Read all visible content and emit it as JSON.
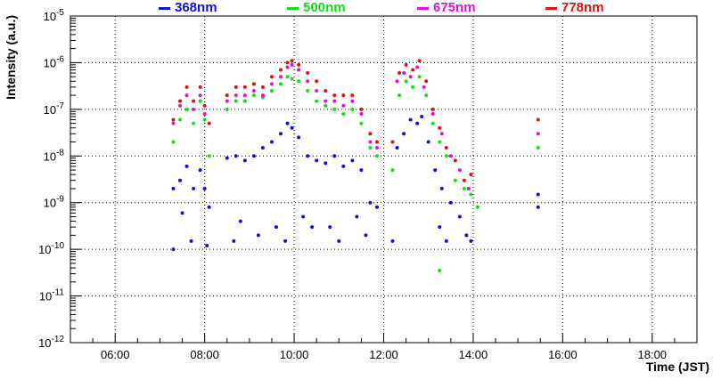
{
  "chart_data": {
    "type": "scatter",
    "xlabel": "Time (JST)",
    "ylabel": "Intensity (a.u.)",
    "x_unit": "hours (JST)",
    "xlim": [
      5.0,
      19.0
    ],
    "ylim": [
      1e-12,
      1e-05
    ],
    "yscale": "log",
    "grid": true,
    "legend_position": "top",
    "x_ticks": [
      {
        "value": 6,
        "label": "06:00"
      },
      {
        "value": 8,
        "label": "08:00"
      },
      {
        "value": 10,
        "label": "10:00"
      },
      {
        "value": 12,
        "label": "12:00"
      },
      {
        "value": 14,
        "label": "14:00"
      },
      {
        "value": 16,
        "label": "16:00"
      },
      {
        "value": 18,
        "label": "18:00"
      }
    ],
    "y_ticks": [
      {
        "value": 1e-12,
        "base": "10",
        "exp": "-12"
      },
      {
        "value": 1e-11,
        "base": "10",
        "exp": "-11"
      },
      {
        "value": 1e-10,
        "base": "10",
        "exp": "-10"
      },
      {
        "value": 1e-09,
        "base": "10",
        "exp": "-9"
      },
      {
        "value": 1e-08,
        "base": "10",
        "exp": "-8"
      },
      {
        "value": 1e-07,
        "base": "10",
        "exp": "-7"
      },
      {
        "value": 1e-06,
        "base": "10",
        "exp": "-6"
      },
      {
        "value": 1e-05,
        "base": "10",
        "exp": "-5"
      }
    ],
    "series": [
      {
        "name": "368nm",
        "color": "#1010e0",
        "x": [
          7.3,
          7.45,
          7.6,
          7.75,
          7.9,
          8.0,
          8.1,
          8.5,
          8.7,
          8.9,
          9.1,
          9.3,
          9.5,
          9.7,
          9.85,
          9.95,
          10.1,
          10.3,
          10.5,
          10.7,
          10.9,
          11.1,
          11.3,
          11.5,
          11.7,
          11.85,
          12.3,
          12.45,
          12.6,
          12.75,
          12.85,
          13.0,
          13.15,
          13.3,
          13.5,
          13.7,
          13.85,
          15.45,
          15.45,
          7.3,
          7.7,
          8.05,
          8.65,
          9.2,
          9.8,
          10.4,
          11.0,
          11.6,
          12.2,
          13.4,
          13.95,
          7.5,
          8.8,
          9.6,
          10.2,
          10.8,
          11.4,
          13.25
        ],
        "y": [
          2e-09,
          3e-09,
          6e-09,
          2e-09,
          5e-09,
          2e-09,
          8e-10,
          9e-09,
          1e-08,
          8e-09,
          1e-08,
          1.5e-08,
          2e-08,
          3e-08,
          5e-08,
          4e-08,
          2.5e-08,
          1e-08,
          8e-09,
          7e-09,
          1e-08,
          6e-09,
          8e-09,
          5e-09,
          1e-09,
          8e-10,
          1.5e-08,
          3e-08,
          6e-08,
          5e-08,
          7e-08,
          2e-08,
          5e-09,
          2e-09,
          1e-09,
          5e-10,
          2e-10,
          1.5e-09,
          8e-10,
          1e-10,
          1.5e-10,
          1.2e-10,
          1.5e-10,
          2e-10,
          1.5e-10,
          3e-10,
          1.5e-10,
          2e-10,
          1.5e-10,
          1.5e-10,
          1.5e-10,
          6e-10,
          4e-10,
          3e-10,
          5e-10,
          3e-10,
          5e-10,
          3e-10
        ]
      },
      {
        "name": "500nm",
        "color": "#10e010",
        "x": [
          7.3,
          7.45,
          7.6,
          7.75,
          7.9,
          8.0,
          8.1,
          8.5,
          8.7,
          8.9,
          9.1,
          9.3,
          9.5,
          9.7,
          9.85,
          9.95,
          10.1,
          10.3,
          10.5,
          10.7,
          10.9,
          11.1,
          11.3,
          11.5,
          11.7,
          11.85,
          12.2,
          12.35,
          12.5,
          12.65,
          12.8,
          12.95,
          13.1,
          13.25,
          13.4,
          13.6,
          13.8,
          13.95,
          14.1,
          15.45,
          13.25
        ],
        "y": [
          2e-08,
          6e-08,
          1e-07,
          5e-08,
          1.5e-07,
          6e-08,
          1e-08,
          1e-07,
          1.5e-07,
          1.5e-07,
          2e-07,
          1.8e-07,
          2.5e-07,
          3.5e-07,
          5e-07,
          4.5e-07,
          4e-07,
          2.5e-07,
          1.5e-07,
          1.2e-07,
          1e-07,
          8e-08,
          1e-07,
          5e-08,
          1.5e-08,
          1e-08,
          5e-09,
          2e-07,
          4e-07,
          3e-07,
          5e-07,
          2e-07,
          5e-08,
          2e-08,
          1e-08,
          3e-09,
          2e-09,
          1.5e-09,
          8e-10,
          1.5e-08,
          3.5e-11
        ]
      },
      {
        "name": "675nm",
        "color": "#e010e0",
        "x": [
          7.3,
          7.45,
          7.6,
          7.75,
          7.9,
          8.0,
          8.5,
          8.7,
          8.9,
          9.1,
          9.3,
          9.5,
          9.7,
          9.85,
          9.95,
          10.1,
          10.3,
          10.5,
          10.7,
          10.9,
          11.1,
          11.3,
          11.5,
          11.7,
          11.85,
          12.3,
          12.45,
          12.6,
          12.75,
          12.9,
          13.1,
          13.3,
          13.5,
          13.7,
          13.9,
          15.45
        ],
        "y": [
          5e-08,
          1.2e-07,
          2e-07,
          1e-07,
          2e-07,
          8e-08,
          1.5e-07,
          2e-07,
          2e-07,
          2.5e-07,
          2e-07,
          3.5e-07,
          5e-07,
          8e-07,
          9e-07,
          7e-07,
          4e-07,
          2.5e-07,
          1.5e-07,
          1.5e-07,
          1.2e-07,
          1.5e-07,
          8e-08,
          2e-08,
          1.5e-08,
          4e-07,
          6e-07,
          5e-07,
          8e-07,
          3e-07,
          8e-08,
          3e-08,
          1e-08,
          5e-09,
          2e-09,
          3e-08
        ]
      },
      {
        "name": "778nm",
        "color": "#e01010",
        "x": [
          7.3,
          7.45,
          7.6,
          7.75,
          7.9,
          8.0,
          8.1,
          8.5,
          8.7,
          8.9,
          9.1,
          9.3,
          9.5,
          9.7,
          9.85,
          9.95,
          10.1,
          10.3,
          10.5,
          10.7,
          10.9,
          11.1,
          11.3,
          11.5,
          11.7,
          11.85,
          12.2,
          12.35,
          12.5,
          12.65,
          12.8,
          12.95,
          13.1,
          13.25,
          13.4,
          13.6,
          13.8,
          13.95,
          15.45
        ],
        "y": [
          6e-08,
          1.5e-07,
          3e-07,
          1.5e-07,
          3e-07,
          1.2e-07,
          5e-08,
          2e-07,
          3e-07,
          3e-07,
          3.5e-07,
          3e-07,
          5e-07,
          7e-07,
          1e-06,
          1.1e-06,
          9e-07,
          6e-07,
          4e-07,
          2.5e-07,
          2e-07,
          2e-07,
          2e-07,
          1e-07,
          3e-08,
          2e-08,
          2e-08,
          6e-07,
          9e-07,
          7e-07,
          1.1e-06,
          4e-07,
          1e-07,
          4e-08,
          1.5e-08,
          8e-09,
          3e-09,
          4e-09,
          6e-08
        ]
      }
    ]
  }
}
